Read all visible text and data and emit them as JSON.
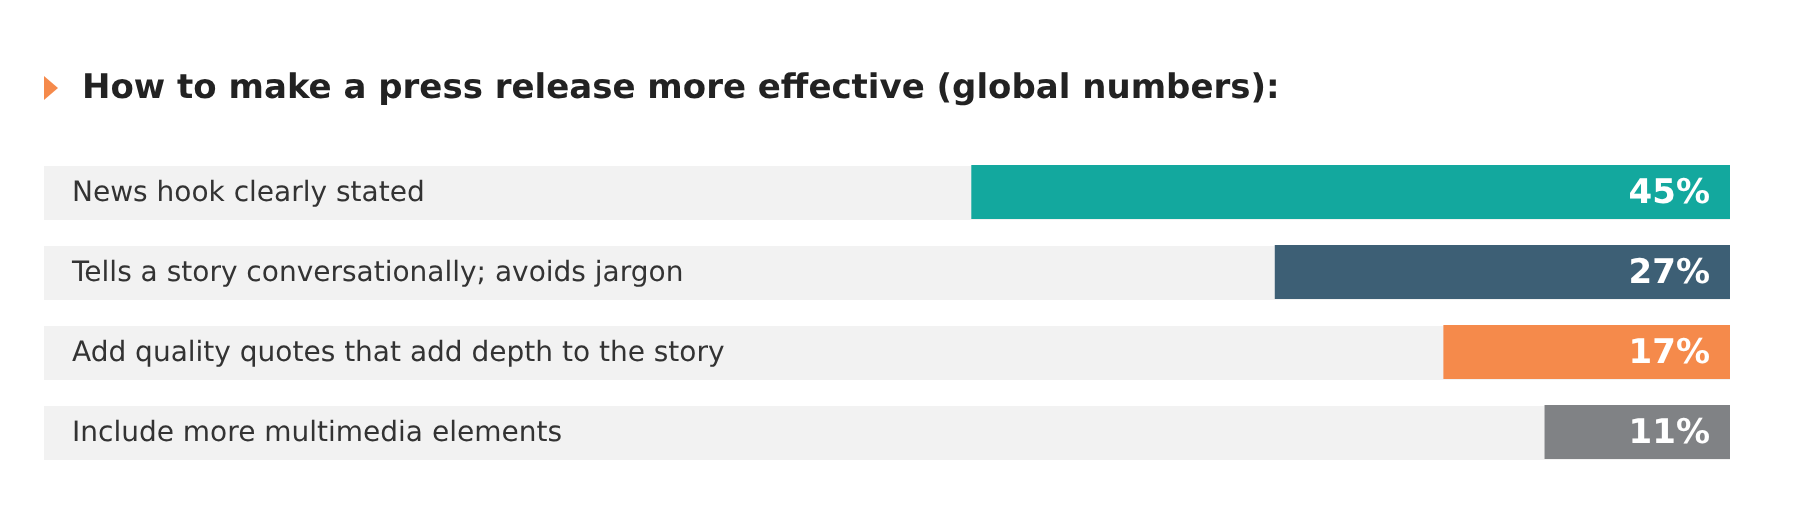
{
  "chart_data": {
    "type": "bar",
    "orientation": "horizontal",
    "title": "How to make a press release more effective (global numbers):",
    "categories": [
      "News hook clearly stated",
      "Tells a story conversationally; avoids jargon",
      "Add quality quotes that add depth to the story",
      "Include more multimedia elements"
    ],
    "values": [
      45,
      27,
      17,
      11
    ],
    "colors": [
      "#13a89e",
      "#3d5f75",
      "#f58a4b",
      "#808285"
    ],
    "value_labels": [
      "45%",
      "27%",
      "17%",
      "11%"
    ],
    "xlim": [
      100,
      0
    ],
    "tick_labels": "y",
    "legend": false
  }
}
